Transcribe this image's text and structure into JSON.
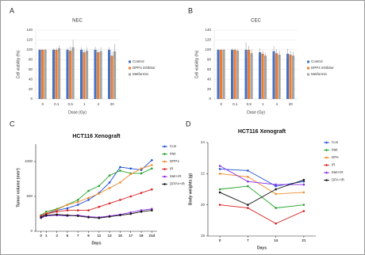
{
  "chart_data": [
    {
      "type": "bar",
      "panel": "A",
      "title": "NEC",
      "x_label": "Dose (Gy)",
      "y_label": "Cell viability (%)",
      "categories": [
        "0",
        "0.1",
        "0.5",
        "1",
        "4",
        "20"
      ],
      "series": [
        {
          "name": "Control",
          "color": "#4472c4",
          "values": [
            100,
            100,
            100,
            100,
            100,
            100
          ],
          "errors": [
            2,
            3,
            4,
            5,
            6,
            5
          ]
        },
        {
          "name": "DPP4 inhibitor",
          "color": "#ed7d31",
          "values": [
            100,
            100,
            98,
            95,
            95,
            88
          ],
          "errors": [
            2,
            4,
            8,
            6,
            5,
            8
          ]
        },
        {
          "name": "Metformin",
          "color": "#a5a5a5",
          "values": [
            100,
            103,
            105,
            98,
            97,
            97
          ],
          "errors": [
            2,
            6,
            15,
            7,
            8,
            15
          ]
        }
      ],
      "ylim": [
        0,
        140
      ],
      "yticks": [
        0,
        20,
        40,
        60,
        80,
        100,
        120,
        140
      ],
      "grid": false
    },
    {
      "type": "bar",
      "panel": "B",
      "title": "CEC",
      "x_label": "Dose (Gy)",
      "y_label": "Cell viability (%)",
      "categories": [
        "0",
        "0.1",
        "0.5",
        "1",
        "4",
        "20"
      ],
      "series": [
        {
          "name": "Control",
          "color": "#4472c4",
          "values": [
            100,
            100,
            100,
            95,
            97,
            92
          ],
          "errors": [
            2,
            3,
            15,
            8,
            10,
            10
          ]
        },
        {
          "name": "DPP4 inhibitor",
          "color": "#ed7d31",
          "values": [
            100,
            100,
            100,
            92,
            93,
            90
          ],
          "errors": [
            2,
            3,
            8,
            6,
            8,
            8
          ]
        },
        {
          "name": "Metformin",
          "color": "#a5a5a5",
          "values": [
            100,
            98,
            93,
            88,
            90,
            88
          ],
          "errors": [
            2,
            3,
            8,
            6,
            8,
            8
          ]
        }
      ],
      "ylim": [
        0,
        140
      ],
      "yticks": [
        0,
        20,
        40,
        60,
        80,
        100,
        120,
        140
      ],
      "grid": false
    },
    {
      "type": "line",
      "panel": "C",
      "title": "HCT116 Xenograft",
      "x_label": "Days",
      "y_label": "Tumor volume (mm³)",
      "x": [
        0,
        1,
        3,
        5,
        7,
        9,
        11,
        13,
        15,
        17,
        19,
        21
      ],
      "series": [
        {
          "name": "Con",
          "color": "#1f4fd6",
          "values": [
            200,
            250,
            300,
            330,
            380,
            450,
            550,
            700,
            920,
            900,
            880,
            1020
          ]
        },
        {
          "name": "Met",
          "color": "#22a32a",
          "values": [
            230,
            280,
            320,
            380,
            450,
            580,
            650,
            800,
            870,
            830,
            830,
            900
          ]
        },
        {
          "name": "DPP4",
          "color": "#f08a2c",
          "values": [
            220,
            260,
            310,
            380,
            420,
            480,
            540,
            620,
            700,
            820,
            900,
            950
          ]
        },
        {
          "name": "IR",
          "color": "#d62020",
          "values": [
            220,
            250,
            280,
            300,
            300,
            300,
            350,
            400,
            450,
            500,
            550,
            600
          ]
        },
        {
          "name": "Met+IR",
          "color": "#8a2be2",
          "values": [
            190,
            220,
            230,
            220,
            230,
            210,
            200,
            220,
            240,
            270,
            300,
            320
          ]
        },
        {
          "name": "DPP4+IR",
          "color": "#111111",
          "values": [
            200,
            230,
            240,
            230,
            220,
            200,
            190,
            210,
            230,
            250,
            280,
            300
          ]
        }
      ],
      "xlim": [
        -1,
        22
      ],
      "xticks": [
        0,
        1,
        3,
        5,
        7,
        9,
        11,
        13,
        15,
        17,
        19,
        {
          "value": 21,
          "label": "21d"
        }
      ],
      "ylim": [
        0,
        1250
      ],
      "yticks": [
        0,
        500,
        1000
      ],
      "grid": false
    },
    {
      "type": "line",
      "panel": "D",
      "title": "HCT116 Xenograft",
      "x_label": "Days",
      "y_label": "Body weights (g)",
      "x": [
        0,
        7,
        14,
        21
      ],
      "series": [
        {
          "name": "Con",
          "color": "#1f4fd6",
          "values": [
            22.3,
            22.2,
            21.2,
            21.5
          ]
        },
        {
          "name": "Met",
          "color": "#22a32a",
          "values": [
            21.0,
            21.2,
            19.8,
            20.0
          ]
        },
        {
          "name": "DPA",
          "color": "#f08a2c",
          "values": [
            22.0,
            21.8,
            20.7,
            20.8
          ]
        },
        {
          "name": "IR",
          "color": "#d62020",
          "values": [
            20.0,
            19.8,
            18.8,
            19.6
          ]
        },
        {
          "name": "Met+IR",
          "color": "#8a2be2",
          "values": [
            22.5,
            21.5,
            21.3,
            21.3
          ]
        },
        {
          "name": "DPA+IR",
          "color": "#111111",
          "values": [
            20.8,
            20.0,
            21.0,
            21.6
          ]
        }
      ],
      "xlim": [
        -3,
        24
      ],
      "xticks": [
        0,
        7,
        14,
        21
      ],
      "ylim": [
        18,
        24
      ],
      "yticks": [
        18,
        20,
        22,
        24
      ],
      "grid": false
    }
  ]
}
